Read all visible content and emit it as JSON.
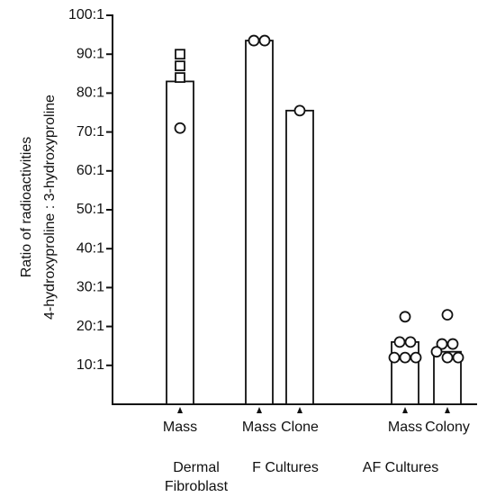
{
  "chart_data": {
    "type": "bar",
    "y_label": [
      "Ratio of radioactivities",
      "4-hydroxyproline : 3-hydroxyproline"
    ],
    "categories": [
      "Mass",
      "Mass",
      "Clone",
      "Mass",
      "Colony"
    ],
    "values": [
      83,
      93.5,
      75.5,
      16,
      13.5
    ],
    "groups": [
      [
        "Dermal",
        "Fibroblast"
      ],
      [
        "F Cultures"
      ],
      [
        "AF Cultures"
      ]
    ],
    "square_points": [
      [
        90,
        87,
        84
      ],
      [],
      [],
      [],
      []
    ],
    "circle_points": [
      [
        71
      ],
      [
        93.5,
        93.5
      ],
      [
        75.5
      ],
      [
        22.5,
        16,
        16,
        12,
        12,
        12
      ],
      [
        23,
        15.5,
        15.5,
        13.5,
        12,
        12
      ]
    ],
    "ylim": [
      0,
      100
    ],
    "yticks": [
      {
        "value": 10,
        "label": "10:1"
      },
      {
        "value": 20,
        "label": "20:1"
      },
      {
        "value": 30,
        "label": "30:1"
      },
      {
        "value": 40,
        "label": "40:1"
      },
      {
        "value": 50,
        "label": "50:1"
      },
      {
        "value": 60,
        "label": "60:1"
      },
      {
        "value": 70,
        "label": "70:1"
      },
      {
        "value": 80,
        "label": "80:1"
      },
      {
        "value": 90,
        "label": "90:1"
      },
      {
        "value": 100,
        "label": "100:1"
      }
    ],
    "color": "#ffffff"
  }
}
